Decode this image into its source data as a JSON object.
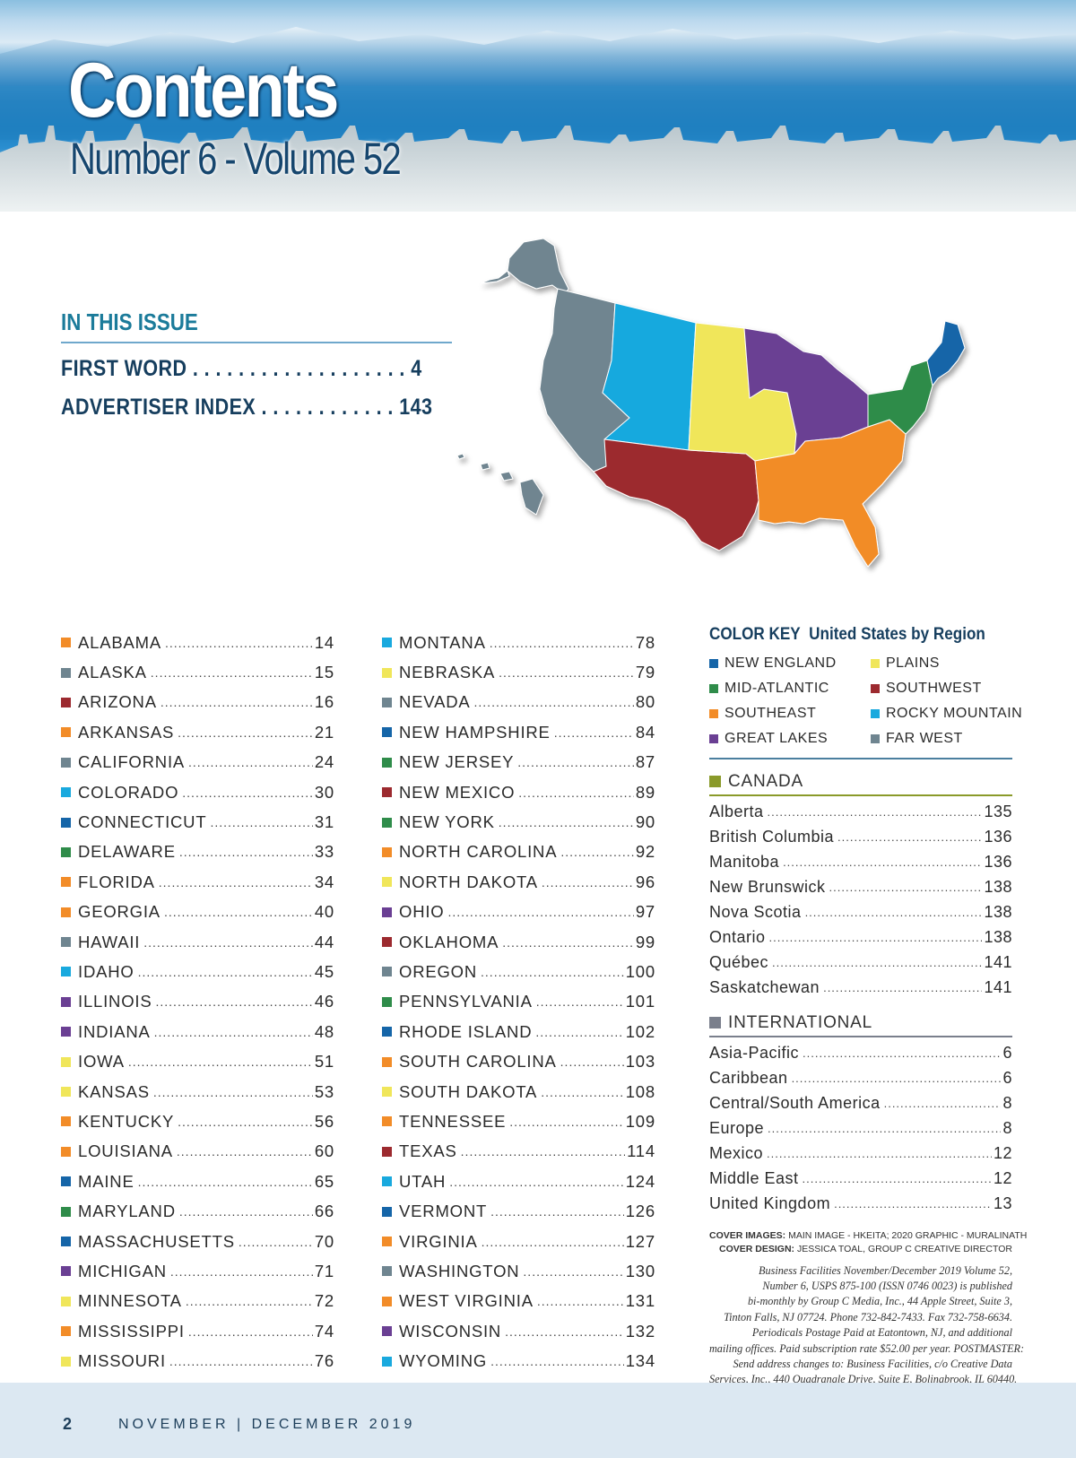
{
  "header": {
    "title": "Contents",
    "subtitle": "Number 6 - Volume 52"
  },
  "in_this_issue": {
    "heading": "IN THIS ISSUE",
    "items": [
      {
        "label": "FIRST WORD",
        "page": "4"
      },
      {
        "label": "ADVERTISER INDEX",
        "page": "143"
      }
    ]
  },
  "region_colors": {
    "new_england": "#1565a8",
    "mid_atlantic": "#2f8c4a",
    "southeast": "#f28c28",
    "great_lakes": "#6a3f93",
    "plains": "#f0e65a",
    "southwest": "#9c2a2f",
    "rocky_mountain": "#19a9de",
    "far_west": "#6f8590",
    "canada": "#8a9a2a",
    "international": "#7a7f8c"
  },
  "states_col1": [
    {
      "name": "ALABAMA",
      "page": "14",
      "region": "southeast"
    },
    {
      "name": "ALASKA",
      "page": "15",
      "region": "far_west"
    },
    {
      "name": "ARIZONA",
      "page": "16",
      "region": "southwest"
    },
    {
      "name": "ARKANSAS",
      "page": "21",
      "region": "southeast"
    },
    {
      "name": "CALIFORNIA",
      "page": "24",
      "region": "far_west"
    },
    {
      "name": "COLORADO",
      "page": "30",
      "region": "rocky_mountain"
    },
    {
      "name": "CONNECTICUT",
      "page": "31",
      "region": "new_england"
    },
    {
      "name": "DELAWARE",
      "page": "33",
      "region": "mid_atlantic"
    },
    {
      "name": "FLORIDA",
      "page": "34",
      "region": "southeast"
    },
    {
      "name": "GEORGIA",
      "page": "40",
      "region": "southeast"
    },
    {
      "name": "HAWAII",
      "page": "44",
      "region": "far_west"
    },
    {
      "name": "IDAHO",
      "page": "45",
      "region": "rocky_mountain"
    },
    {
      "name": "ILLINOIS",
      "page": "46",
      "region": "great_lakes"
    },
    {
      "name": "INDIANA",
      "page": "48",
      "region": "great_lakes"
    },
    {
      "name": "IOWA",
      "page": "51",
      "region": "plains"
    },
    {
      "name": "KANSAS",
      "page": "53",
      "region": "plains"
    },
    {
      "name": "KENTUCKY",
      "page": "56",
      "region": "southeast"
    },
    {
      "name": "LOUISIANA",
      "page": "60",
      "region": "southeast"
    },
    {
      "name": "MAINE",
      "page": "65",
      "region": "new_england"
    },
    {
      "name": "MARYLAND",
      "page": "66",
      "region": "mid_atlantic"
    },
    {
      "name": "MASSACHUSETTS",
      "page": "70",
      "region": "new_england"
    },
    {
      "name": "MICHIGAN",
      "page": "71",
      "region": "great_lakes"
    },
    {
      "name": "MINNESOTA",
      "page": "72",
      "region": "plains"
    },
    {
      "name": "MISSISSIPPI",
      "page": "74",
      "region": "southeast"
    },
    {
      "name": "MISSOURI",
      "page": "76",
      "region": "plains"
    }
  ],
  "states_col2": [
    {
      "name": "MONTANA",
      "page": "78",
      "region": "rocky_mountain"
    },
    {
      "name": "NEBRASKA",
      "page": "79",
      "region": "plains"
    },
    {
      "name": "NEVADA",
      "page": "80",
      "region": "far_west"
    },
    {
      "name": "NEW HAMPSHIRE",
      "page": "84",
      "region": "new_england"
    },
    {
      "name": "NEW JERSEY",
      "page": "87",
      "region": "mid_atlantic"
    },
    {
      "name": "NEW MEXICO",
      "page": "89",
      "region": "southwest"
    },
    {
      "name": "NEW YORK",
      "page": "90",
      "region": "mid_atlantic"
    },
    {
      "name": "NORTH CAROLINA",
      "page": "92",
      "region": "southeast"
    },
    {
      "name": "NORTH DAKOTA",
      "page": "96",
      "region": "plains"
    },
    {
      "name": "OHIO",
      "page": "97",
      "region": "great_lakes"
    },
    {
      "name": "OKLAHOMA",
      "page": "99",
      "region": "southwest"
    },
    {
      "name": "OREGON",
      "page": "100",
      "region": "far_west"
    },
    {
      "name": "PENNSYLVANIA",
      "page": "101",
      "region": "mid_atlantic"
    },
    {
      "name": "RHODE ISLAND",
      "page": "102",
      "region": "new_england"
    },
    {
      "name": "SOUTH CAROLINA",
      "page": "103",
      "region": "southeast"
    },
    {
      "name": "SOUTH DAKOTA",
      "page": "108",
      "region": "plains"
    },
    {
      "name": "TENNESSEE",
      "page": "109",
      "region": "southeast"
    },
    {
      "name": "TEXAS",
      "page": "114",
      "region": "southwest"
    },
    {
      "name": "UTAH",
      "page": "124",
      "region": "rocky_mountain"
    },
    {
      "name": "VERMONT",
      "page": "126",
      "region": "new_england"
    },
    {
      "name": "VIRGINIA",
      "page": "127",
      "region": "southeast"
    },
    {
      "name": "WASHINGTON",
      "page": "130",
      "region": "far_west"
    },
    {
      "name": "WEST VIRGINIA",
      "page": "131",
      "region": "southeast"
    },
    {
      "name": "WISCONSIN",
      "page": "132",
      "region": "great_lakes"
    },
    {
      "name": "WYOMING",
      "page": "134",
      "region": "rocky_mountain"
    }
  ],
  "color_key": {
    "label": "COLOR KEY",
    "title": "United States by Region",
    "items": [
      {
        "label": "NEW ENGLAND",
        "region": "new_england"
      },
      {
        "label": "PLAINS",
        "region": "plains"
      },
      {
        "label": "MID-ATLANTIC",
        "region": "mid_atlantic"
      },
      {
        "label": "SOUTHWEST",
        "region": "southwest"
      },
      {
        "label": "SOUTHEAST",
        "region": "southeast"
      },
      {
        "label": "ROCKY MOUNTAIN",
        "region": "rocky_mountain"
      },
      {
        "label": "GREAT LAKES",
        "region": "great_lakes"
      },
      {
        "label": "FAR WEST",
        "region": "far_west"
      }
    ]
  },
  "canada": {
    "heading": "CANADA",
    "items": [
      {
        "name": "Alberta",
        "page": "135"
      },
      {
        "name": "British Columbia",
        "page": "136"
      },
      {
        "name": "Manitoba",
        "page": "136"
      },
      {
        "name": "New Brunswick",
        "page": "138"
      },
      {
        "name": "Nova Scotia",
        "page": "138"
      },
      {
        "name": "Ontario",
        "page": "138"
      },
      {
        "name": "Québec",
        "page": "141"
      },
      {
        "name": "Saskatchewan",
        "page": "141"
      }
    ]
  },
  "international": {
    "heading": "INTERNATIONAL",
    "items": [
      {
        "name": "Asia-Pacific",
        "page": "6"
      },
      {
        "name": "Caribbean",
        "page": "6"
      },
      {
        "name": "Central/South America",
        "page": "8"
      },
      {
        "name": "Europe",
        "page": "8"
      },
      {
        "name": "Mexico",
        "page": "12"
      },
      {
        "name": "Middle East",
        "page": "12"
      },
      {
        "name": "United Kingdom",
        "page": "13"
      }
    ]
  },
  "credits": {
    "cover_images_label": "COVER IMAGES:",
    "cover_images_value": "MAIN IMAGE - HKEITA; 2020 GRAPHIC - MURALINATH",
    "cover_design_label": "COVER DESIGN:",
    "cover_design_value": "JESSICA TOAL, GROUP C CREATIVE DIRECTOR"
  },
  "pub_info": [
    "Business Facilities November/December 2019 Volume 52,",
    "Number 6, USPS 875-100 (ISSN 0746 0023) is published",
    "bi-monthly by Group C Media, Inc., 44 Apple Street, Suite 3,",
    "Tinton Falls, NJ 07724. Phone 732-842-7433. Fax 732-758-6634.",
    "Periodicals Postage Paid at Eatontown, NJ, and additional",
    "mailing offices. Paid subscription rate $52.00 per year. POSTMASTER:",
    "Send address changes to: Business Facilities, c/o Creative Data",
    "Services, Inc., 440 Quadrangle Drive, Suite E, Bolingbrook, IL 60440."
  ],
  "footer": {
    "page_number": "2",
    "issue": "NOVEMBER  |  DECEMBER 2019"
  }
}
